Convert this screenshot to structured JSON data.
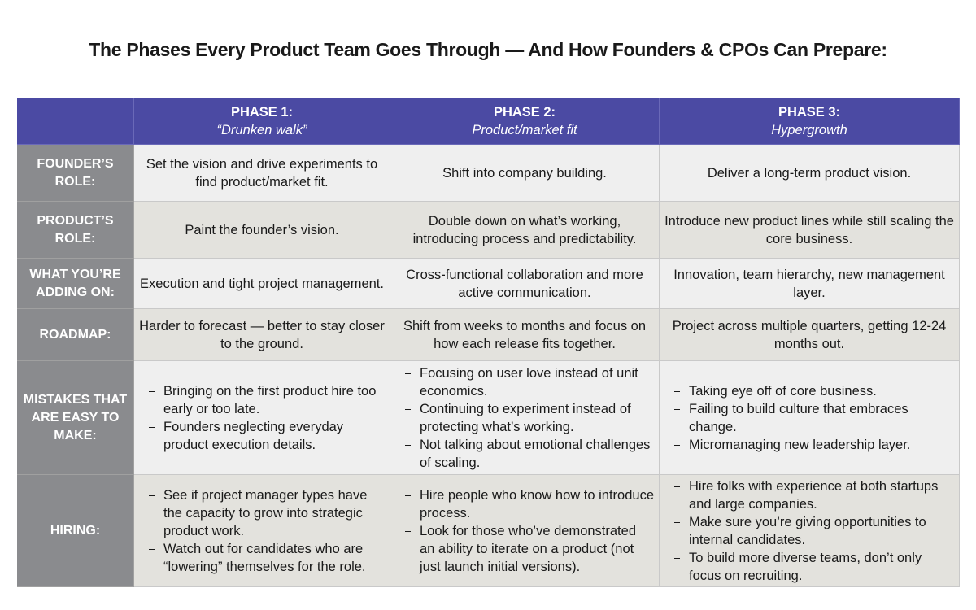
{
  "title": "The Phases Every Product Team Goes Through — And How Founders & CPOs Can Prepare:",
  "table": {
    "header": [
      {
        "name": "PHASE 1:",
        "subtitle": "“Drunken walk”"
      },
      {
        "name": "PHASE 2:",
        "subtitle": "Product/market fit"
      },
      {
        "name": "PHASE 3:",
        "subtitle": "Hypergrowth"
      }
    ],
    "rows": [
      {
        "label": "FOUNDER’S ROLE:",
        "cells": [
          "Set the vision and drive experiments to find product/market fit.",
          "Shift into company building.",
          "Deliver a long-term product vision."
        ]
      },
      {
        "label": "PRODUCT’S ROLE:",
        "cells": [
          "Paint the founder’s vision.",
          "Double down on what’s working, introducing process and predictability.",
          "Introduce new product lines while still scaling the core business."
        ]
      },
      {
        "label": "WHAT YOU’RE ADDING ON:",
        "cells": [
          "Execution and tight project management.",
          "Cross-functional collaboration and more active communication.",
          "Innovation, team hierarchy, new management layer."
        ]
      },
      {
        "label": "ROADMAP:",
        "cells": [
          "Harder to forecast — better to stay closer to the ground.",
          "Shift from weeks to months and focus on how each release fits together.",
          "Project across multiple quarters, getting 12-24 months out."
        ]
      },
      {
        "label": "MISTAKES THAT ARE EASY TO MAKE:",
        "cells": [
          [
            "Bringing on the first product hire too early or too late.",
            "Founders neglecting everyday product execution details."
          ],
          [
            "Focusing on user love instead of unit economics.",
            "Continuing to experiment instead of protecting what’s working.",
            "Not talking about emotional challenges of scaling."
          ],
          [
            "Taking eye off of core business.",
            "Failing to build culture that embraces change.",
            "Micromanaging new leadership layer."
          ]
        ]
      },
      {
        "label": "HIRING:",
        "cells": [
          [
            "See if project manager types have the capacity to grow into strategic product work.",
            "Watch out for candidates who are “lowering” themselves for the role."
          ],
          [
            "Hire people who know how to introduce process.",
            "Look for those who’ve demonstrated an ability to iterate on a product (not just launch initial versions)."
          ],
          [
            "Hire folks with experience at both startups and large companies.",
            "Make sure you’re giving opportunities to internal candidates.",
            "To build more diverse teams, don’t only focus on recruiting."
          ]
        ]
      }
    ]
  }
}
